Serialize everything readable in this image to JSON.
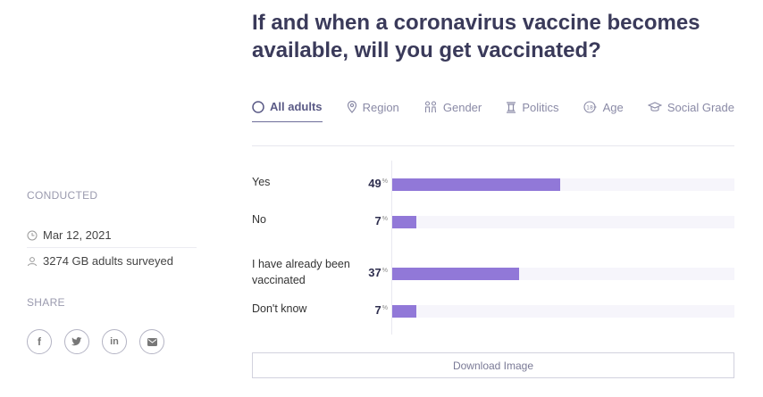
{
  "question": {
    "title": "If and when a coronavirus vaccine becomes available, will you get vaccinated?"
  },
  "tabs": [
    {
      "label": "All adults",
      "icon": "circle-icon",
      "active": true
    },
    {
      "label": "Region",
      "icon": "pin-icon",
      "active": false
    },
    {
      "label": "Gender",
      "icon": "gender-icon",
      "active": false
    },
    {
      "label": "Politics",
      "icon": "pillar-icon",
      "active": false
    },
    {
      "label": "Age",
      "icon": "age-icon",
      "active": false
    },
    {
      "label": "Social Grade",
      "icon": "graduation-cap-icon",
      "active": false
    }
  ],
  "sidebar": {
    "conducted_label": "CONDUCTED",
    "date": "Mar 12, 2021",
    "sample": "3274 GB adults surveyed",
    "share_label": "SHARE",
    "share_buttons": [
      {
        "icon": "facebook-icon",
        "glyph": "f"
      },
      {
        "icon": "twitter-icon",
        "glyph": "t"
      },
      {
        "icon": "linkedin-icon",
        "glyph": "in"
      },
      {
        "icon": "email-icon",
        "glyph": "✉"
      }
    ]
  },
  "chart_data": {
    "type": "bar",
    "orientation": "horizontal",
    "categories": [
      "Yes",
      "No",
      "I have already been vaccinated",
      "Don't know"
    ],
    "values": [
      49,
      7,
      37,
      7
    ],
    "unit": "%",
    "xlim": [
      0,
      100
    ],
    "bar_color": "#9178d8",
    "track_color": "#f6f5fb",
    "grid": false
  },
  "download": {
    "label": "Download Image"
  }
}
